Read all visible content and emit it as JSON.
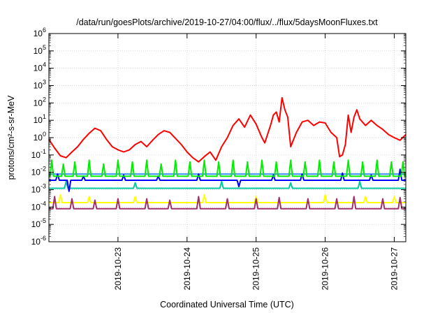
{
  "chart_data": {
    "type": "line",
    "title": "/data/run/goesPlots/archive/2019-10-27/04:00/flux/../flux/5daysMoonFluxes.txt",
    "xlabel": "Coordinated Universal Time (UTC)",
    "ylabel": "protons/cm²-s-sr-MeV",
    "yscale": "log",
    "ylim": [
      1e-06,
      1000000.0
    ],
    "ytick_exponents": [
      -6,
      -5,
      -4,
      -3,
      -2,
      -1,
      0,
      1,
      2,
      3,
      4,
      5,
      6
    ],
    "xlim": [
      "2019-10-22T00:00",
      "2019-10-27T04:00"
    ],
    "x_ticks": [
      "2019-10-23",
      "2019-10-24",
      "2019-10-25",
      "2019-10-26",
      "2019-10-27"
    ],
    "grid": true,
    "legend": "none",
    "series": [
      {
        "color": "#ff0000",
        "points": [
          [
            "2019-10-22T00:00",
            0.8
          ],
          [
            "2019-10-22T02:00",
            0.25
          ],
          [
            "2019-10-22T04:00",
            0.09
          ],
          [
            "2019-10-22T06:00",
            0.07
          ],
          [
            "2019-10-22T08:00",
            0.15
          ],
          [
            "2019-10-22T10:00",
            0.3
          ],
          [
            "2019-10-22T12:00",
            0.8
          ],
          [
            "2019-10-22T14:00",
            1.8
          ],
          [
            "2019-10-22T16:00",
            3.5
          ],
          [
            "2019-10-22T18:00",
            2.5
          ],
          [
            "2019-10-22T20:00",
            0.8
          ],
          [
            "2019-10-22T22:00",
            0.3
          ],
          [
            "2019-10-23T00:00",
            0.2
          ],
          [
            "2019-10-23T02:00",
            0.15
          ],
          [
            "2019-10-23T04:00",
            0.2
          ],
          [
            "2019-10-23T06:00",
            0.4
          ],
          [
            "2019-10-23T08:00",
            0.6
          ],
          [
            "2019-10-23T10:00",
            0.3
          ],
          [
            "2019-10-23T12:00",
            0.7
          ],
          [
            "2019-10-23T14:00",
            1.5
          ],
          [
            "2019-10-23T16:00",
            2.5
          ],
          [
            "2019-10-23T18:00",
            2.0
          ],
          [
            "2019-10-23T20:00",
            0.9
          ],
          [
            "2019-10-23T22:00",
            0.4
          ],
          [
            "2019-10-24T00:00",
            0.15
          ],
          [
            "2019-10-24T02:00",
            0.07
          ],
          [
            "2019-10-24T04:00",
            0.04
          ],
          [
            "2019-10-24T06:00",
            0.08
          ],
          [
            "2019-10-24T08:00",
            0.15
          ],
          [
            "2019-10-24T10:00",
            0.05
          ],
          [
            "2019-10-24T12:00",
            0.3
          ],
          [
            "2019-10-24T14:00",
            1.0
          ],
          [
            "2019-10-24T16:00",
            5.0
          ],
          [
            "2019-10-24T18:00",
            12
          ],
          [
            "2019-10-24T20:00",
            4.0
          ],
          [
            "2019-10-24T22:00",
            20
          ],
          [
            "2019-10-25T00:00",
            6.0
          ],
          [
            "2019-10-25T02:00",
            1.0
          ],
          [
            "2019-10-25T03:00",
            0.5
          ],
          [
            "2019-10-25T05:00",
            5.0
          ],
          [
            "2019-10-25T06:00",
            20
          ],
          [
            "2019-10-25T07:00",
            30
          ],
          [
            "2019-10-25T08:00",
            8.0
          ],
          [
            "2019-10-25T09:00",
            200
          ],
          [
            "2019-10-25T10:00",
            40
          ],
          [
            "2019-10-25T11:00",
            15
          ],
          [
            "2019-10-25T12:00",
            0.3
          ],
          [
            "2019-10-25T14:00",
            2.0
          ],
          [
            "2019-10-25T16:00",
            8.0
          ],
          [
            "2019-10-25T18:00",
            10
          ],
          [
            "2019-10-25T20:00",
            5.0
          ],
          [
            "2019-10-25T22:00",
            8.0
          ],
          [
            "2019-10-26T00:00",
            7.0
          ],
          [
            "2019-10-26T02:00",
            2.0
          ],
          [
            "2019-10-26T04:00",
            1.0
          ],
          [
            "2019-10-26T05:00",
            0.08
          ],
          [
            "2019-10-26T06:00",
            0.1
          ],
          [
            "2019-10-26T07:00",
            0.4
          ],
          [
            "2019-10-26T08:00",
            20
          ],
          [
            "2019-10-26T09:00",
            2.0
          ],
          [
            "2019-10-26T10:00",
            15
          ],
          [
            "2019-10-26T11:00",
            40
          ],
          [
            "2019-10-26T12:00",
            12
          ],
          [
            "2019-10-26T14:00",
            5.0
          ],
          [
            "2019-10-26T16:00",
            10
          ],
          [
            "2019-10-26T18:00",
            5.0
          ],
          [
            "2019-10-26T20:00",
            3.0
          ],
          [
            "2019-10-26T22:00",
            1.5
          ],
          [
            "2019-10-27T00:00",
            1.0
          ],
          [
            "2019-10-27T02:00",
            0.7
          ],
          [
            "2019-10-27T04:00",
            1.5
          ]
        ]
      },
      {
        "color": "#00ee00",
        "baseline": 0.006,
        "spikes": [
          [
            "2019-10-22T01:00",
            0.05
          ],
          [
            "2019-10-22T05:00",
            0.03
          ],
          [
            "2019-10-22T09:00",
            0.04
          ],
          [
            "2019-10-22T14:00",
            0.05
          ],
          [
            "2019-10-22T19:00",
            0.03
          ],
          [
            "2019-10-23T00:00",
            0.05
          ],
          [
            "2019-10-23T05:00",
            0.04
          ],
          [
            "2019-10-23T10:00",
            0.05
          ],
          [
            "2019-10-23T15:00",
            0.03
          ],
          [
            "2019-10-23T20:00",
            0.05
          ],
          [
            "2019-10-24T01:00",
            0.04
          ],
          [
            "2019-10-24T06:00",
            0.05
          ],
          [
            "2019-10-24T11:00",
            0.04
          ],
          [
            "2019-10-24T16:00",
            0.05
          ],
          [
            "2019-10-24T21:00",
            0.04
          ],
          [
            "2019-10-25T02:00",
            0.05
          ],
          [
            "2019-10-25T07:00",
            0.04
          ],
          [
            "2019-10-25T12:00",
            0.05
          ],
          [
            "2019-10-25T17:00",
            0.04
          ],
          [
            "2019-10-25T22:00",
            0.05
          ],
          [
            "2019-10-26T03:00",
            0.04
          ],
          [
            "2019-10-26T08:00",
            0.05
          ],
          [
            "2019-10-26T13:00",
            0.04
          ],
          [
            "2019-10-26T18:00",
            0.05
          ],
          [
            "2019-10-26T23:00",
            0.04
          ],
          [
            "2019-10-27T03:00",
            0.04
          ]
        ]
      },
      {
        "color": "#0000ff",
        "baseline": 0.0035,
        "spikes": [
          [
            "2019-10-22T03:00",
            0.008
          ],
          [
            "2019-10-22T07:00",
            0.0008
          ],
          [
            "2019-10-22T12:00",
            0.006
          ],
          [
            "2019-10-23T02:00",
            0.007
          ],
          [
            "2019-10-23T14:00",
            0.006
          ],
          [
            "2019-10-24T04:00",
            0.008
          ],
          [
            "2019-10-24T18:00",
            0.0015
          ],
          [
            "2019-10-25T06:00",
            0.007
          ],
          [
            "2019-10-25T16:00",
            0.008
          ],
          [
            "2019-10-26T06:00",
            0.009
          ],
          [
            "2019-10-26T16:00",
            0.007
          ],
          [
            "2019-10-27T02:00",
            0.015
          ]
        ]
      },
      {
        "color": "#3d8eff",
        "baseline": 0.008,
        "spikes": []
      },
      {
        "color": "#00c8a0",
        "baseline": 0.0012,
        "spikes": [
          [
            "2019-10-22T06:00",
            0.003
          ],
          [
            "2019-10-23T06:00",
            0.0025
          ],
          [
            "2019-10-24T12:00",
            0.003
          ],
          [
            "2019-10-25T12:00",
            0.0025
          ],
          [
            "2019-10-26T12:00",
            0.003
          ]
        ]
      },
      {
        "color": "#ffff00",
        "baseline": 0.00018,
        "spikes": [
          [
            "2019-10-22T04:00",
            0.0005
          ],
          [
            "2019-10-22T14:00",
            0.0004
          ],
          [
            "2019-10-23T06:00",
            0.0004
          ],
          [
            "2019-10-24T06:00",
            0.0005
          ],
          [
            "2019-10-25T00:00",
            0.0004
          ],
          [
            "2019-10-26T00:00",
            0.0005
          ],
          [
            "2019-10-26T14:00",
            0.0004
          ],
          [
            "2019-10-27T00:00",
            0.0004
          ]
        ]
      },
      {
        "color": "#a0306a",
        "baseline": 8e-05,
        "spikes": [
          [
            "2019-10-22T02:00",
            0.0004
          ],
          [
            "2019-10-22T08:00",
            0.0003
          ],
          [
            "2019-10-22T16:00",
            0.00025
          ],
          [
            "2019-10-23T00:00",
            0.0003
          ],
          [
            "2019-10-23T10:00",
            0.0003
          ],
          [
            "2019-10-23T18:00",
            0.00025
          ],
          [
            "2019-10-24T04:00",
            0.0004
          ],
          [
            "2019-10-24T14:00",
            0.0003
          ],
          [
            "2019-10-25T00:00",
            0.0003
          ],
          [
            "2019-10-25T08:00",
            0.00035
          ],
          [
            "2019-10-25T18:00",
            0.0003
          ],
          [
            "2019-10-26T04:00",
            0.0003
          ],
          [
            "2019-10-26T10:00",
            0.0004
          ],
          [
            "2019-10-26T20:00",
            0.0003
          ],
          [
            "2019-10-27T02:00",
            0.00035
          ]
        ]
      }
    ]
  }
}
